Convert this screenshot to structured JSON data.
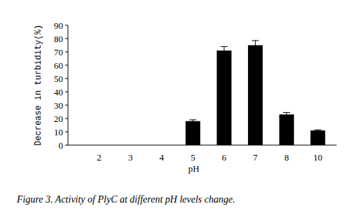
{
  "chart_data": {
    "type": "bar",
    "title": "Figure 3. Activity of PlyC at different pH levels change.",
    "x_label": "pH",
    "y_label": "Decrease in turbidity(%)",
    "categories": [
      "2",
      "3",
      "4",
      "5",
      "6",
      "7",
      "8",
      "10"
    ],
    "values": [
      0,
      0,
      0,
      18,
      71,
      75,
      23,
      11
    ],
    "errors": [
      0,
      0,
      0,
      1,
      3,
      3.5,
      1.5,
      0.5
    ],
    "color": "#000000",
    "ylim": [
      0,
      90
    ],
    "yticks": [
      0,
      10,
      20,
      30,
      40,
      50,
      60,
      70,
      80,
      90
    ],
    "grid": false
  }
}
